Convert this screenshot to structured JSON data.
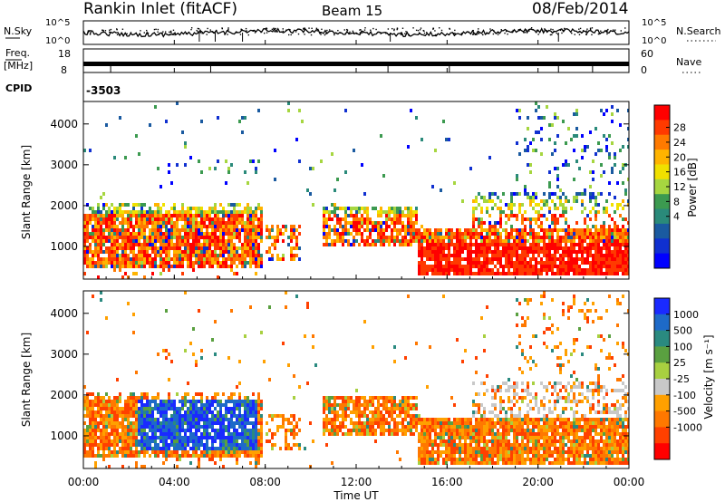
{
  "header": {
    "title": "Rankin Inlet (fitACF)",
    "beam": "Beam 15",
    "date": "08/Feb/2014"
  },
  "chart_data": [
    {
      "type": "line",
      "name": "noise-panel",
      "left_axis_label": "N.Sky",
      "right_axis_label": "N.Search",
      "left_ticks": [
        "10^5",
        "10^0"
      ],
      "right_ticks": [
        "10^5",
        "10^0"
      ],
      "x_range_hours": [
        0,
        24
      ]
    },
    {
      "type": "line",
      "name": "frequency-panel",
      "left_axis_label_top": "Freq.",
      "left_axis_label_bottom": "[MHz]",
      "right_axis_label": "Nave",
      "left_ticks": [
        18,
        8
      ],
      "right_ticks": [
        60,
        0
      ],
      "cpid_label": "CPID",
      "cpid_value": "-3503"
    },
    {
      "type": "heatmap",
      "name": "power-panel",
      "ylabel": "Slant Range [km]",
      "yticks": [
        1000,
        2000,
        3000,
        4000
      ],
      "ylim": [
        200,
        4550
      ],
      "xlim": [
        0,
        24
      ],
      "colorbar_label": "Power [dB]",
      "colorbar_ticks": [
        "28",
        "24",
        "20",
        "16",
        "12",
        "8",
        "4"
      ],
      "colorbar_colors": [
        "#ff0000",
        "#ff3a00",
        "#ff7a00",
        "#ffb400",
        "#f0e000",
        "#a6d640",
        "#3c9a50",
        "#2a8a7a",
        "#1a5aa0",
        "#1030d0",
        "#0000ff"
      ]
    },
    {
      "type": "heatmap",
      "name": "velocity-panel",
      "ylabel": "Slant Range [km]",
      "yticks": [
        1000,
        2000,
        3000,
        4000
      ],
      "ylim": [
        200,
        4550
      ],
      "xlim": [
        0,
        24
      ],
      "colorbar_label": "Velocity [m s⁻¹]",
      "colorbar_ticks": [
        "1000",
        "500",
        "100",
        "25",
        "-25",
        "-100",
        "-500",
        "-1000"
      ],
      "colorbar_colors": [
        "#1a2aff",
        "#1e6ac8",
        "#2a8a80",
        "#5aa040",
        "#a8d040",
        "#c8c8c8",
        "#ffa000",
        "#ff7800",
        "#ff4000",
        "#ff0000"
      ]
    }
  ],
  "x_axis": {
    "ticks": [
      "00:00",
      "04:00",
      "08:00",
      "12:00",
      "16:00",
      "20:00",
      "00:00"
    ],
    "label": "Time UT"
  }
}
